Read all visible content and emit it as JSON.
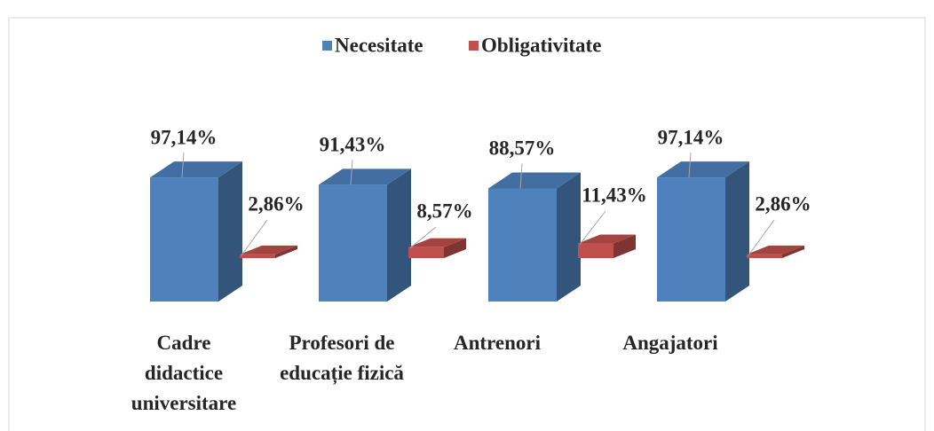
{
  "chart_data": {
    "type": "bar3d",
    "categories": [
      "Cadre didactice universitare",
      "Profesori de educație fizică",
      "Antrenori",
      "Angajatori"
    ],
    "series": [
      {
        "name": "Necesitate",
        "color": "#4f81bd",
        "values": [
          97.14,
          91.43,
          88.57,
          97.14
        ],
        "value_labels": [
          "97,14%",
          "91,43%",
          "88,57%",
          "97,14%"
        ]
      },
      {
        "name": "Obligativitate",
        "color": "#c0504d",
        "values": [
          2.86,
          8.57,
          11.43,
          2.86
        ],
        "value_labels": [
          "2,86%",
          "8,57%",
          "11,43%",
          "2,86%"
        ]
      }
    ],
    "legend": "top"
  }
}
